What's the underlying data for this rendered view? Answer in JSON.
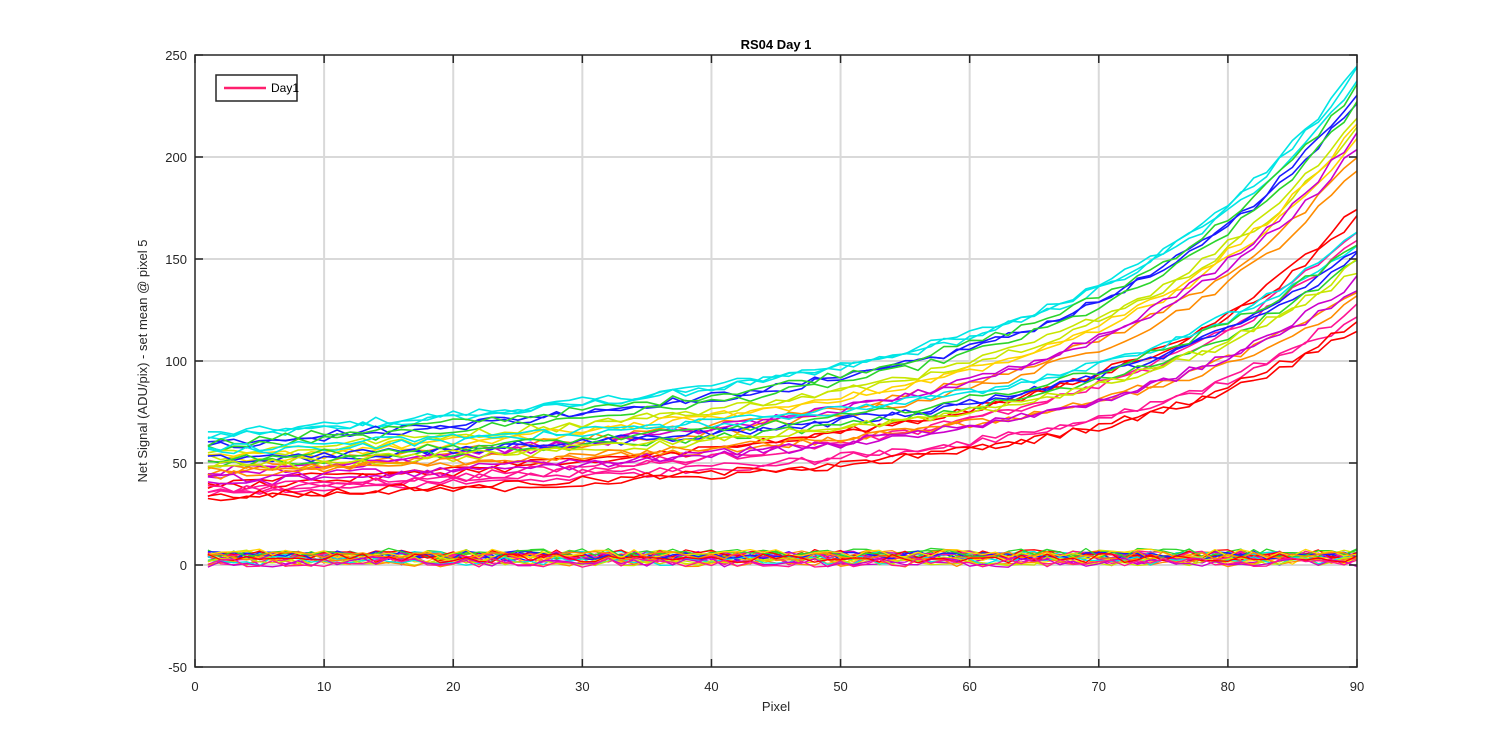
{
  "chart_data": {
    "type": "line",
    "title": "RS04 Day 1",
    "xlabel": "Pixel",
    "ylabel": "Net Signal (ADU/pix) - set mean @ pixel 5",
    "xlim": [
      0,
      90
    ],
    "ylim": [
      -50,
      250
    ],
    "xticks": [
      0,
      10,
      20,
      30,
      40,
      50,
      60,
      70,
      80,
      90
    ],
    "yticks": [
      -50,
      0,
      50,
      100,
      150,
      200,
      250
    ],
    "xtick_labels": [
      "0",
      "10",
      "20",
      "30",
      "40",
      "50",
      "60",
      "70",
      "80",
      "90"
    ],
    "ytick_labels": [
      "-50",
      "0",
      "50",
      "100",
      "150",
      "200",
      "250"
    ],
    "grid": true,
    "legend": {
      "position": "top-left",
      "entries": [
        {
          "label": "Day1",
          "color": "#ff1f6e"
        }
      ]
    },
    "x_range": [
      1,
      90
    ],
    "series_groups": [
      {
        "description_color": "#00e5e5",
        "start_values": [
          62,
          64,
          63
        ],
        "end_values": [
          245,
          242,
          238
        ],
        "upper_band": true
      },
      {
        "description_color": "#1a1aff",
        "start_values": [
          58,
          60
        ],
        "end_values": [
          232,
          228
        ],
        "upper_band": true
      },
      {
        "description_color": "#2bd42b",
        "start_values": [
          60,
          57
        ],
        "end_values": [
          235,
          226
        ],
        "upper_band": true
      },
      {
        "description_color": "#c8e600",
        "start_values": [
          53,
          55
        ],
        "end_values": [
          220,
          214
        ],
        "upper_band": true
      },
      {
        "description_color": "#ffd400",
        "start_values": [
          50,
          52
        ],
        "end_values": [
          215,
          208
        ],
        "upper_band": true
      },
      {
        "description_color": "#ff8c00",
        "start_values": [
          48,
          45
        ],
        "end_values": [
          200,
          194
        ],
        "upper_band": true
      },
      {
        "description_color": "#cc00cc",
        "start_values": [
          44,
          46
        ],
        "end_values": [
          212,
          205
        ],
        "upper_band": true
      },
      {
        "description_color": "#ff0000",
        "start_values": [
          38,
          40
        ],
        "end_values": [
          175,
          170
        ],
        "upper_band": true
      },
      {
        "description_color": "#ff1493",
        "start_values": [
          35,
          37
        ],
        "end_values": [
          165,
          160
        ],
        "upper_band": true
      },
      {
        "description_color": "#00e5e5",
        "start_values": [
          55,
          57
        ],
        "end_values": [
          162,
          158
        ],
        "upper_band": false
      },
      {
        "description_color": "#1a1aff",
        "start_values": [
          50,
          52
        ],
        "end_values": [
          155,
          152
        ],
        "upper_band": false
      },
      {
        "description_color": "#2bd42b",
        "start_values": [
          52,
          49
        ],
        "end_values": [
          158,
          150
        ],
        "upper_band": false
      },
      {
        "description_color": "#c8e600",
        "start_values": [
          47,
          49
        ],
        "end_values": [
          148,
          144
        ],
        "upper_band": false
      },
      {
        "description_color": "#ff8c00",
        "start_values": [
          44,
          46
        ],
        "end_values": [
          135,
          130
        ],
        "upper_band": false
      },
      {
        "description_color": "#cc00cc",
        "start_values": [
          40,
          42
        ],
        "end_values": [
          140,
          136
        ],
        "upper_band": false
      },
      {
        "description_color": "#ff1493",
        "start_values": [
          35,
          37
        ],
        "end_values": [
          126,
          122
        ],
        "upper_band": false
      },
      {
        "description_color": "#ff0000",
        "start_values": [
          32,
          34
        ],
        "end_values": [
          120,
          116
        ],
        "upper_band": false
      }
    ],
    "flat_band": {
      "colors": [
        "#00e5e5",
        "#1a1aff",
        "#2bd42b",
        "#c8e600",
        "#ffd400",
        "#ff8c00",
        "#cc00cc",
        "#ff0000",
        "#ff1493"
      ],
      "mean_range": [
        0,
        7
      ]
    }
  }
}
